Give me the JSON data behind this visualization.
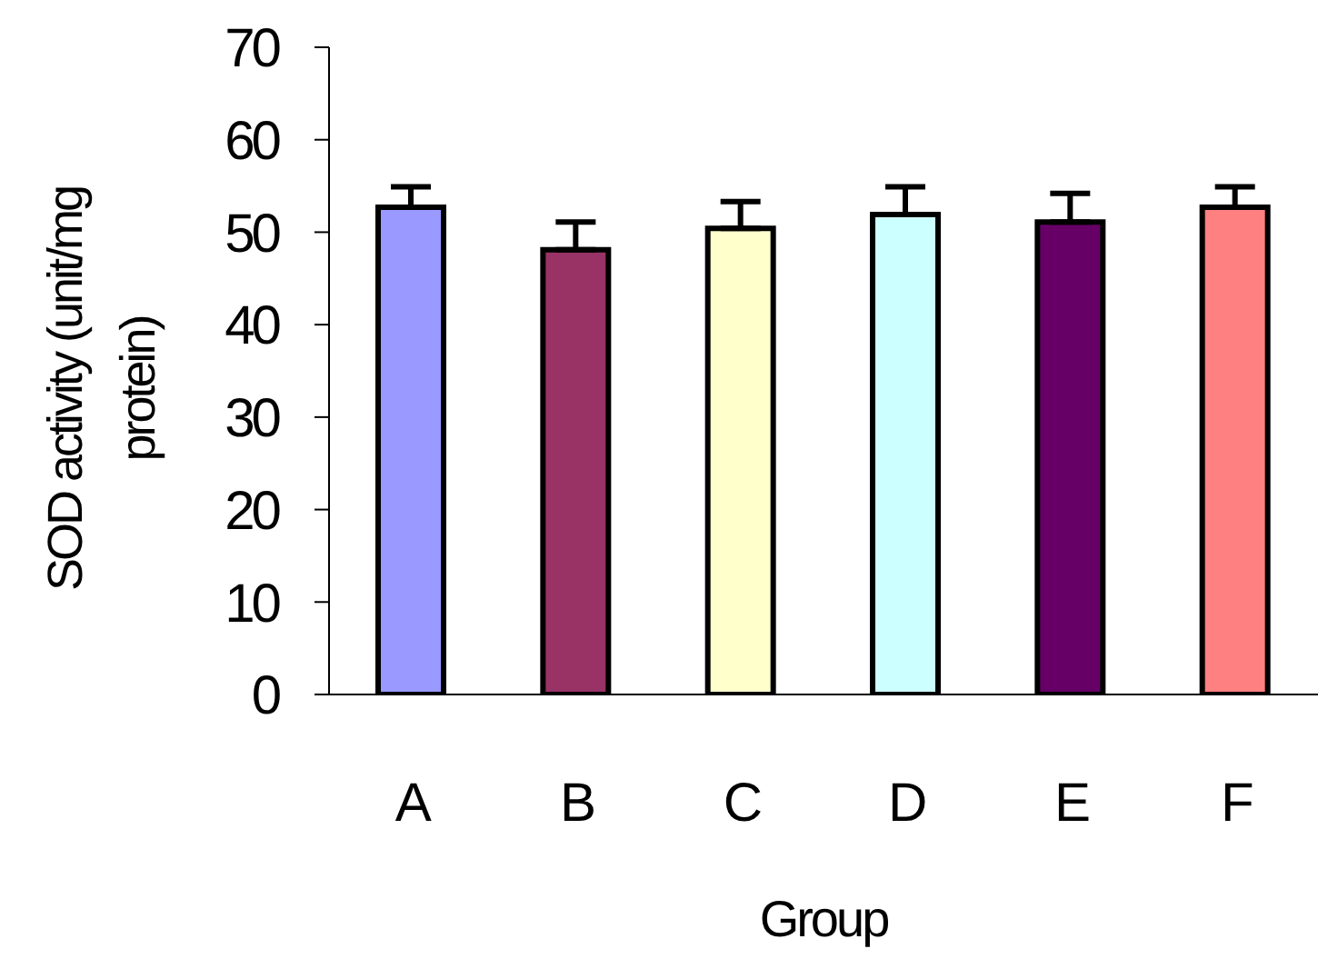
{
  "chart_data": {
    "type": "bar",
    "xlabel": "Group",
    "ylabel": "SOD activity (unit/mg protein)",
    "categories": [
      "A",
      "B",
      "C",
      "D",
      "E",
      "F"
    ],
    "values": [
      52.7,
      48.1,
      50.4,
      51.9,
      51.1,
      52.7
    ],
    "errors": [
      [
        52.7,
        54.9
      ],
      [
        48.1,
        51.1
      ],
      [
        50.4,
        53.3
      ],
      [
        51.9,
        54.9
      ],
      [
        51.1,
        54.2
      ],
      [
        52.7,
        54.9
      ]
    ],
    "colors": [
      "#9999ff",
      "#993366",
      "#ffffcc",
      "#ccffff",
      "#660066",
      "#ff8080"
    ],
    "ylim": [
      0,
      70
    ],
    "yticks": [
      0,
      10,
      20,
      30,
      40,
      50,
      60,
      70
    ],
    "grid": false,
    "legend": false
  }
}
